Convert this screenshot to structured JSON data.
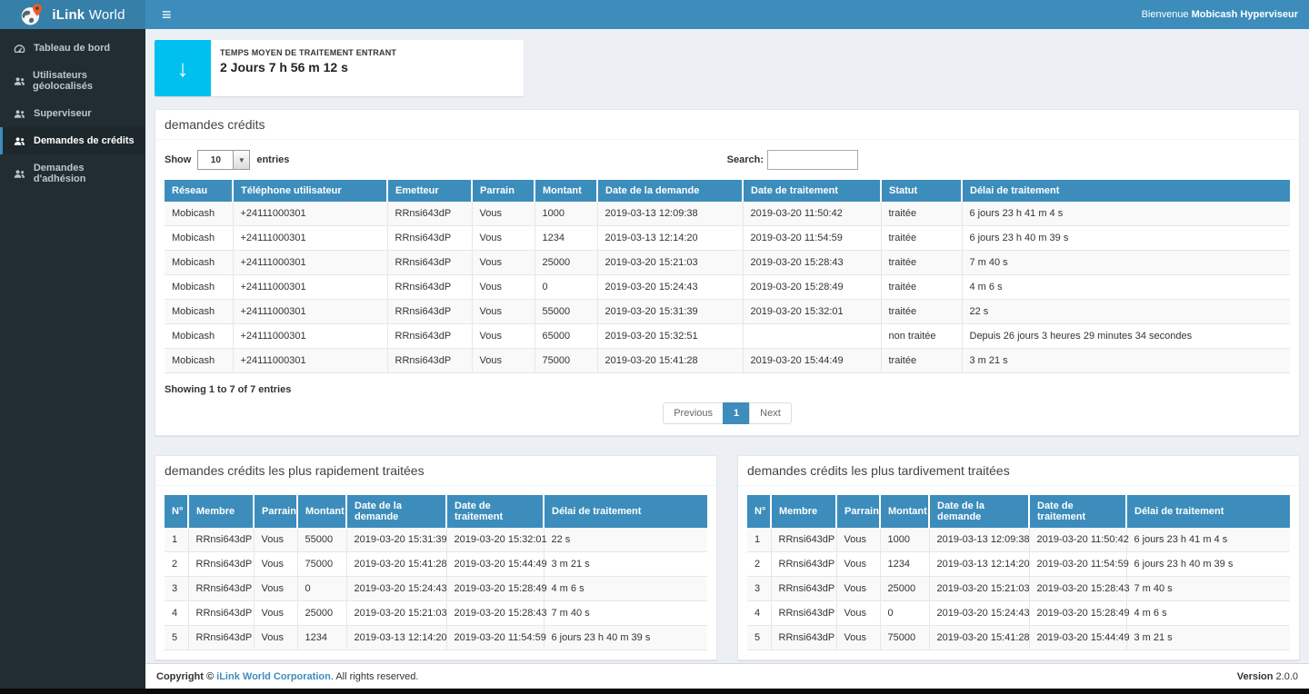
{
  "navbar": {
    "brand_bold": "iLink",
    "brand_regular": "World",
    "welcome_prefix": "Bienvenue",
    "welcome_user": "Mobicash Hyperviseur"
  },
  "sidebar": {
    "items": [
      {
        "label": "Tableau de bord",
        "icon": "dashboard-icon"
      },
      {
        "label": "Utilisateurs géolocalisés",
        "icon": "users-icon"
      },
      {
        "label": "Superviseur",
        "icon": "users-icon"
      },
      {
        "label": "Demandes de crédits",
        "icon": "users-icon"
      },
      {
        "label": "Demandes d'adhésion",
        "icon": "users-icon"
      }
    ],
    "active_item": "Demandes de crédits"
  },
  "info_box": {
    "label": "TEMPS MOYEN DE TRAITEMENT ENTRANT",
    "value": "2 Jours 7 h 56 m 12 s",
    "icon": "arrow-down-icon",
    "icon_color": "#00c0ef"
  },
  "main_panel": {
    "title": "demandes crédits",
    "show_label": "Show",
    "show_value": "10",
    "entries_label": "entries",
    "search_label": "Search:",
    "search_value": "",
    "table": {
      "columns": [
        "Réseau",
        "Téléphone utilisateur",
        "Emetteur",
        "Parrain",
        "Montant",
        "Date de la demande",
        "Date de traitement",
        "Statut",
        "Délai de traitement"
      ],
      "rows": [
        [
          "Mobicash",
          "+24111000301",
          "RRnsi643dP",
          "Vous",
          "1000",
          "2019-03-13 12:09:38",
          "2019-03-20 11:50:42",
          "traitée",
          "6 jours 23 h 41 m 4 s"
        ],
        [
          "Mobicash",
          "+24111000301",
          "RRnsi643dP",
          "Vous",
          "1234",
          "2019-03-13 12:14:20",
          "2019-03-20 11:54:59",
          "traitée",
          "6 jours 23 h 40 m 39 s"
        ],
        [
          "Mobicash",
          "+24111000301",
          "RRnsi643dP",
          "Vous",
          "25000",
          "2019-03-20 15:21:03",
          "2019-03-20 15:28:43",
          "traitée",
          "7 m 40 s"
        ],
        [
          "Mobicash",
          "+24111000301",
          "RRnsi643dP",
          "Vous",
          "0",
          "2019-03-20 15:24:43",
          "2019-03-20 15:28:49",
          "traitée",
          "4 m 6 s"
        ],
        [
          "Mobicash",
          "+24111000301",
          "RRnsi643dP",
          "Vous",
          "55000",
          "2019-03-20 15:31:39",
          "2019-03-20 15:32:01",
          "traitée",
          "22 s"
        ],
        [
          "Mobicash",
          "+24111000301",
          "RRnsi643dP",
          "Vous",
          "65000",
          "2019-03-20 15:32:51",
          "",
          "non traitée",
          "Depuis 26 jours 3 heures 29 minutes 34 secondes"
        ],
        [
          "Mobicash",
          "+24111000301",
          "RRnsi643dP",
          "Vous",
          "75000",
          "2019-03-20 15:41:28",
          "2019-03-20 15:44:49",
          "traitée",
          "3 m 21 s"
        ]
      ]
    },
    "summary": "Showing 1 to 7 of 7 entries",
    "pagination": {
      "previous": "Previous",
      "page": "1",
      "next": "Next"
    }
  },
  "fast_panel": {
    "title": "demandes crédits les plus rapidement traitées",
    "table": {
      "columns": [
        "N°",
        "Membre",
        "Parrain",
        "Montant",
        "Date de la demande",
        "Date de traitement",
        "Délai de traitement"
      ],
      "rows": [
        [
          "1",
          "RRnsi643dP",
          "Vous",
          "55000",
          "2019-03-20 15:31:39",
          "2019-03-20 15:32:01",
          "22 s"
        ],
        [
          "2",
          "RRnsi643dP",
          "Vous",
          "75000",
          "2019-03-20 15:41:28",
          "2019-03-20 15:44:49",
          "3 m 21 s"
        ],
        [
          "3",
          "RRnsi643dP",
          "Vous",
          "0",
          "2019-03-20 15:24:43",
          "2019-03-20 15:28:49",
          "4 m 6 s"
        ],
        [
          "4",
          "RRnsi643dP",
          "Vous",
          "25000",
          "2019-03-20 15:21:03",
          "2019-03-20 15:28:43",
          "7 m 40 s"
        ],
        [
          "5",
          "RRnsi643dP",
          "Vous",
          "1234",
          "2019-03-13 12:14:20",
          "2019-03-20 11:54:59",
          "6 jours 23 h 40 m 39 s"
        ]
      ]
    }
  },
  "slow_panel": {
    "title": "demandes crédits les plus tardivement traitées",
    "table": {
      "columns": [
        "N°",
        "Membre",
        "Parrain",
        "Montant",
        "Date de la demande",
        "Date de traitement",
        "Délai de traitement"
      ],
      "rows": [
        [
          "1",
          "RRnsi643dP",
          "Vous",
          "1000",
          "2019-03-13 12:09:38",
          "2019-03-20 11:50:42",
          "6 jours 23 h 41 m 4 s"
        ],
        [
          "2",
          "RRnsi643dP",
          "Vous",
          "1234",
          "2019-03-13 12:14:20",
          "2019-03-20 11:54:59",
          "6 jours 23 h 40 m 39 s"
        ],
        [
          "3",
          "RRnsi643dP",
          "Vous",
          "25000",
          "2019-03-20 15:21:03",
          "2019-03-20 15:28:43",
          "7 m 40 s"
        ],
        [
          "4",
          "RRnsi643dP",
          "Vous",
          "0",
          "2019-03-20 15:24:43",
          "2019-03-20 15:28:49",
          "4 m 6 s"
        ],
        [
          "5",
          "RRnsi643dP",
          "Vous",
          "75000",
          "2019-03-20 15:41:28",
          "2019-03-20 15:44:49",
          "3 m 21 s"
        ]
      ]
    }
  },
  "footer": {
    "copyright_prefix": "Copyright © ",
    "company": "iLink World Corporation",
    "copyright_suffix": ". All rights reserved.",
    "version_label": "Version",
    "version_value": "2.0.0"
  },
  "colors": {
    "navbar": "#3c8dbc",
    "logo_bg": "#367fa9",
    "sidebar": "#222d32",
    "table_header": "#3c8dbc",
    "info_icon": "#00c0ef",
    "pin_orange": "#f05a28",
    "content_bg": "#ecf0f5"
  }
}
